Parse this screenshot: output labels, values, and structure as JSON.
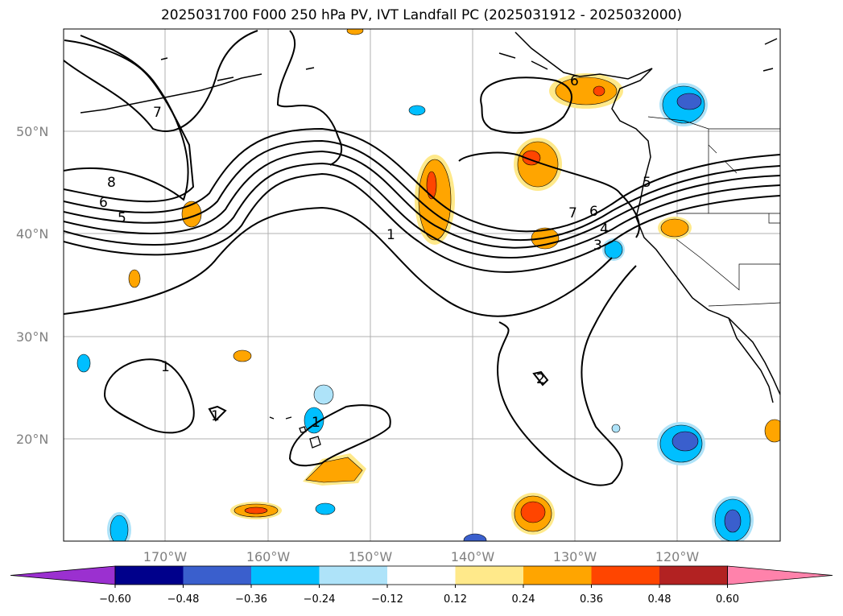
{
  "title": "2025031700 F000 250 hPa PV, IVT Landfall PC (2025031912 - 2025032000)",
  "map": {
    "lat_labels": [
      "50°N",
      "40°N",
      "30°N",
      "20°N"
    ],
    "lon_labels": [
      "170°W",
      "160°W",
      "150°W",
      "140°W",
      "130°W",
      "120°W"
    ],
    "contour_labels": [
      "7",
      "8",
      "6",
      "5",
      "1",
      "7",
      "6",
      "4",
      "3",
      "5",
      "6",
      "1",
      "1",
      "1",
      "2"
    ],
    "colorbar": {
      "ticks": [
        "−0.60",
        "−0.48",
        "−0.36",
        "−0.24",
        "−0.12",
        "0.12",
        "0.24",
        "0.36",
        "0.48",
        "0.60"
      ],
      "colors": [
        "#9b30d0",
        "#00008b",
        "#3a5fcd",
        "#00bfff",
        "#aee3f9",
        "#ffffff",
        "#ffe98a",
        "#ffa500",
        "#ff4500",
        "#b22222",
        "#ff82ab"
      ]
    }
  }
}
